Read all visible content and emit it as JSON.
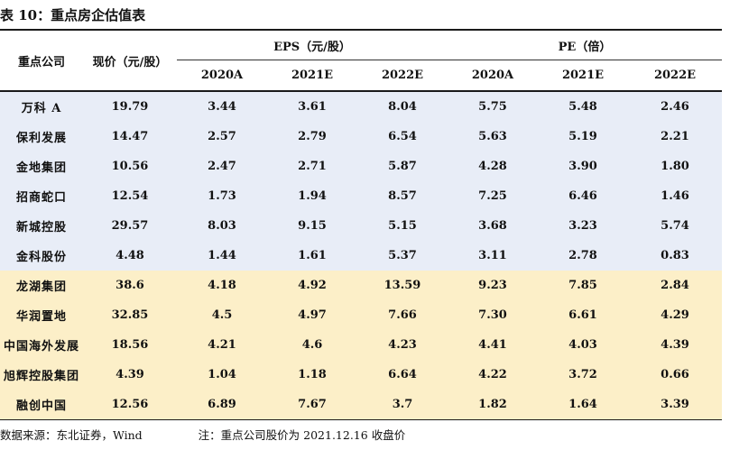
{
  "title": "表 10：重点房企估值表",
  "header": {
    "company": "重点公司",
    "price": "现价（元/股）",
    "eps_group": "EPS（元/股）",
    "pe_group": "PE（倍）",
    "years": [
      "2020A",
      "2021E",
      "2022E"
    ]
  },
  "rows": [
    {
      "name": "万科 A",
      "price": "19.79",
      "eps": [
        "3.44",
        "3.61",
        "8.04"
      ],
      "pe": [
        "5.75",
        "5.48",
        "2.46"
      ],
      "group": "blue"
    },
    {
      "name": "保利发展",
      "price": "14.47",
      "eps": [
        "2.57",
        "2.79",
        "6.54"
      ],
      "pe": [
        "5.63",
        "5.19",
        "2.21"
      ],
      "group": "blue"
    },
    {
      "name": "金地集团",
      "price": "10.56",
      "eps": [
        "2.47",
        "2.71",
        "5.87"
      ],
      "pe": [
        "4.28",
        "3.90",
        "1.80"
      ],
      "group": "blue"
    },
    {
      "name": "招商蛇口",
      "price": "12.54",
      "eps": [
        "1.73",
        "1.94",
        "8.57"
      ],
      "pe": [
        "7.25",
        "6.46",
        "1.46"
      ],
      "group": "blue"
    },
    {
      "name": "新城控股",
      "price": "29.57",
      "eps": [
        "8.03",
        "9.15",
        "5.15"
      ],
      "pe": [
        "3.68",
        "3.23",
        "5.74"
      ],
      "group": "blue"
    },
    {
      "name": "金科股份",
      "price": "4.48",
      "eps": [
        "1.44",
        "1.61",
        "5.37"
      ],
      "pe": [
        "3.11",
        "2.78",
        "0.83"
      ],
      "group": "blue"
    },
    {
      "name": "龙湖集团",
      "price": "38.6",
      "eps": [
        "4.18",
        "4.92",
        "13.59"
      ],
      "pe": [
        "9.23",
        "7.85",
        "2.84"
      ],
      "group": "yellow"
    },
    {
      "name": "华润置地",
      "price": "32.85",
      "eps": [
        "4.5",
        "4.97",
        "7.66"
      ],
      "pe": [
        "7.30",
        "6.61",
        "4.29"
      ],
      "group": "yellow"
    },
    {
      "name": "中国海外发展",
      "price": "18.56",
      "eps": [
        "4.21",
        "4.6",
        "4.23"
      ],
      "pe": [
        "4.41",
        "4.03",
        "4.39"
      ],
      "group": "yellow"
    },
    {
      "name": "旭辉控股集团",
      "price": "4.39",
      "eps": [
        "1.04",
        "1.18",
        "6.64"
      ],
      "pe": [
        "4.22",
        "3.72",
        "0.66"
      ],
      "group": "yellow"
    },
    {
      "name": "融创中国",
      "price": "12.56",
      "eps": [
        "6.89",
        "7.67",
        "3.7"
      ],
      "pe": [
        "1.82",
        "1.64",
        "3.39"
      ],
      "group": "yellow"
    }
  ],
  "footer": {
    "source": "数据来源：东北证券，Wind",
    "note": "注：重点公司股价为 2021.12.16 收盘价"
  },
  "colors": {
    "blue_band": "#e8edf7",
    "yellow_band": "#fcefc8"
  }
}
